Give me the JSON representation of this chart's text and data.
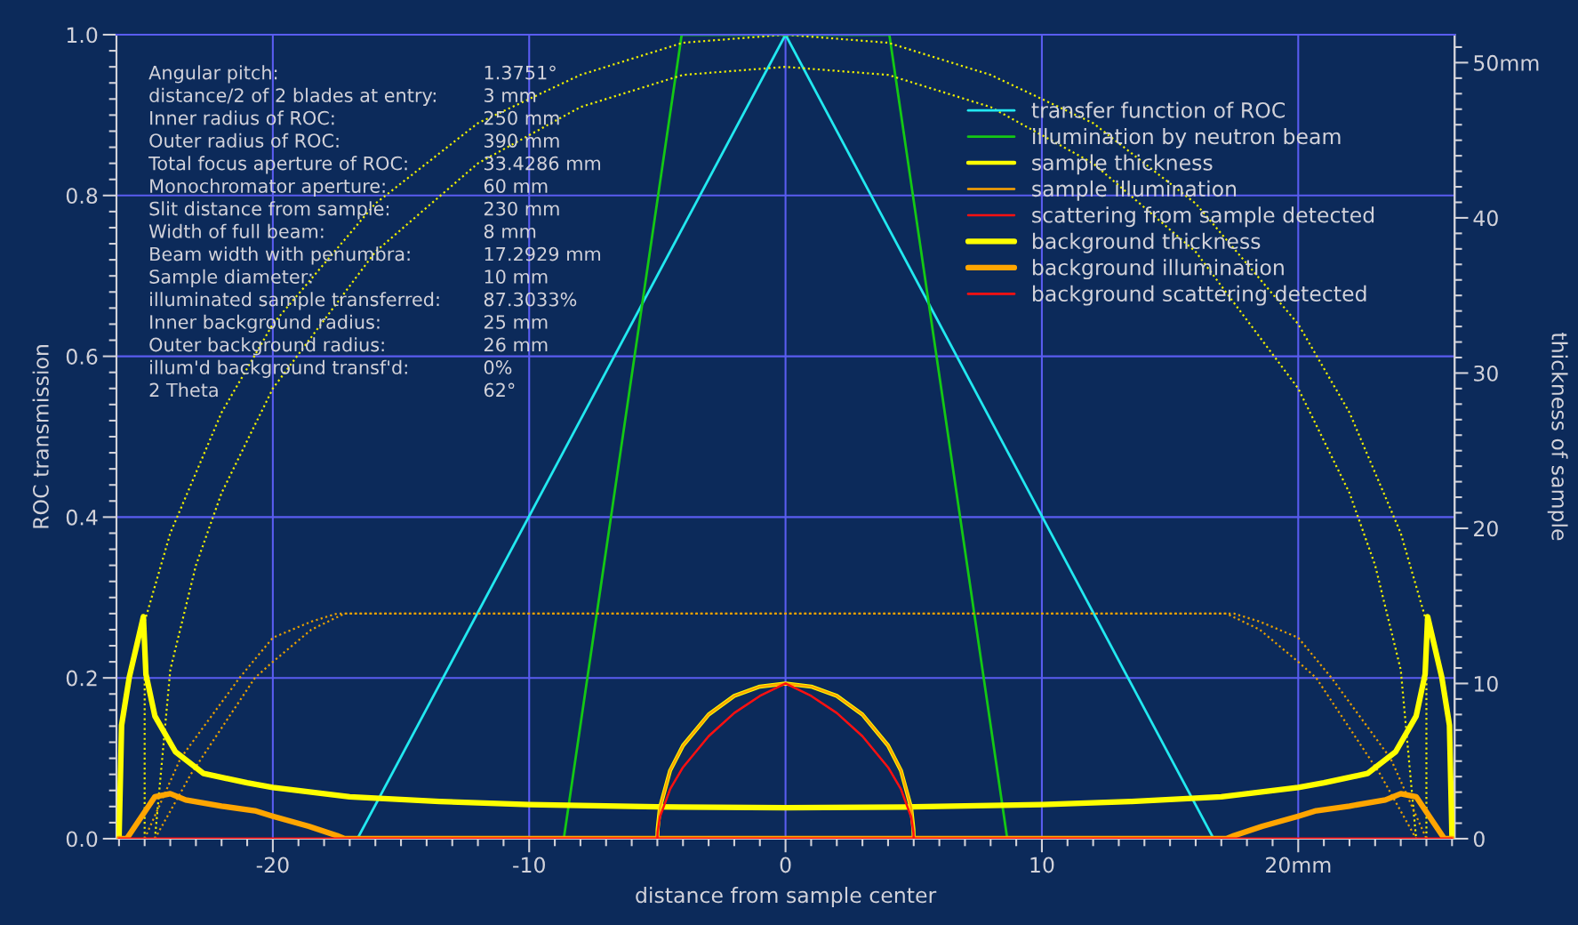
{
  "chart_data": {
    "type": "line",
    "xlabel": "distance from sample center",
    "ylabel": "ROC transmission",
    "y2label": "thickness of sample",
    "xlim": [
      -26.1,
      26.1
    ],
    "ylim": [
      0,
      1
    ],
    "y2lim": [
      0,
      51.8
    ],
    "xticks": [
      {
        "value": -26,
        "label": null
      },
      {
        "value": -25,
        "label": null
      },
      {
        "value": -24,
        "label": null
      },
      {
        "value": -23,
        "label": null
      },
      {
        "value": -22,
        "label": null
      },
      {
        "value": -21,
        "label": null
      },
      -20,
      {
        "value": -19,
        "label": null
      },
      {
        "value": -18,
        "label": null
      },
      {
        "value": -17,
        "label": null
      },
      {
        "value": -16,
        "label": null
      },
      {
        "value": -15,
        "label": null
      },
      {
        "value": -14,
        "label": null
      },
      {
        "value": -13,
        "label": null
      },
      {
        "value": -12,
        "label": null
      },
      {
        "value": -11,
        "label": null
      },
      -10,
      {
        "value": -9,
        "label": null
      },
      {
        "value": -8,
        "label": null
      },
      {
        "value": -7,
        "label": null
      },
      {
        "value": -6,
        "label": null
      },
      {
        "value": -5,
        "label": null
      },
      {
        "value": -4,
        "label": null
      },
      {
        "value": -3,
        "label": null
      },
      {
        "value": -2,
        "label": null
      },
      {
        "value": -1,
        "label": null
      },
      0,
      {
        "value": 1,
        "label": null
      },
      {
        "value": 2,
        "label": null
      },
      {
        "value": 3,
        "label": null
      },
      {
        "value": 4,
        "label": null
      },
      {
        "value": 5,
        "label": null
      },
      {
        "value": 6,
        "label": null
      },
      {
        "value": 7,
        "label": null
      },
      {
        "value": 8,
        "label": null
      },
      {
        "value": 9,
        "label": null
      },
      10,
      {
        "value": 11,
        "label": null
      },
      {
        "value": 12,
        "label": null
      },
      {
        "value": 13,
        "label": null
      },
      {
        "value": 14,
        "label": null
      },
      {
        "value": 15,
        "label": null
      },
      {
        "value": 16,
        "label": null
      },
      {
        "value": 17,
        "label": null
      },
      {
        "value": 18,
        "label": null
      },
      {
        "value": 19,
        "label": null
      },
      {
        "value": 20,
        "label": "20mm"
      },
      {
        "value": 21,
        "label": null
      },
      {
        "value": 22,
        "label": null
      },
      {
        "value": 23,
        "label": null
      },
      {
        "value": 24,
        "label": null
      },
      {
        "value": 25,
        "label": null
      },
      {
        "value": 26,
        "label": null
      }
    ],
    "yticks": [
      {
        "value": 0,
        "label": "0.0"
      },
      {
        "value": 0.02,
        "label": null
      },
      {
        "value": 0.04,
        "label": null
      },
      {
        "value": 0.06,
        "label": null
      },
      {
        "value": 0.08,
        "label": null
      },
      {
        "value": 0.1,
        "label": null
      },
      {
        "value": 0.12,
        "label": null
      },
      {
        "value": 0.14,
        "label": null
      },
      {
        "value": 0.16,
        "label": null
      },
      {
        "value": 0.18,
        "label": null
      },
      0.2,
      {
        "value": 0.22,
        "label": null
      },
      {
        "value": 0.24,
        "label": null
      },
      {
        "value": 0.26,
        "label": null
      },
      {
        "value": 0.28,
        "label": null
      },
      {
        "value": 0.3,
        "label": null
      },
      {
        "value": 0.32,
        "label": null
      },
      {
        "value": 0.34,
        "label": null
      },
      {
        "value": 0.36,
        "label": null
      },
      {
        "value": 0.38,
        "label": null
      },
      0.4,
      {
        "value": 0.42,
        "label": null
      },
      {
        "value": 0.44,
        "label": null
      },
      {
        "value": 0.46,
        "label": null
      },
      {
        "value": 0.48,
        "label": null
      },
      {
        "value": 0.5,
        "label": null
      },
      {
        "value": 0.52,
        "label": null
      },
      {
        "value": 0.54,
        "label": null
      },
      {
        "value": 0.56,
        "label": null
      },
      {
        "value": 0.58,
        "label": null
      },
      0.6,
      {
        "value": 0.62,
        "label": null
      },
      {
        "value": 0.64,
        "label": null
      },
      {
        "value": 0.66,
        "label": null
      },
      {
        "value": 0.68,
        "label": null
      },
      {
        "value": 0.7,
        "label": null
      },
      {
        "value": 0.72,
        "label": null
      },
      {
        "value": 0.74,
        "label": null
      },
      {
        "value": 0.76,
        "label": null
      },
      {
        "value": 0.78,
        "label": null
      },
      0.8,
      {
        "value": 0.82,
        "label": null
      },
      {
        "value": 0.84,
        "label": null
      },
      {
        "value": 0.86,
        "label": null
      },
      {
        "value": 0.88,
        "label": null
      },
      {
        "value": 0.9,
        "label": null
      },
      {
        "value": 0.92,
        "label": null
      },
      {
        "value": 0.94,
        "label": null
      },
      {
        "value": 0.96,
        "label": null
      },
      {
        "value": 0.98,
        "label": null
      },
      {
        "value": 1,
        "label": "1.0"
      }
    ],
    "y2ticks": [
      0,
      {
        "value": 1,
        "label": null
      },
      {
        "value": 2,
        "label": null
      },
      {
        "value": 3,
        "label": null
      },
      {
        "value": 4,
        "label": null
      },
      {
        "value": 5,
        "label": null
      },
      {
        "value": 6,
        "label": null
      },
      {
        "value": 7,
        "label": null
      },
      {
        "value": 8,
        "label": null
      },
      {
        "value": 9,
        "label": null
      },
      10,
      {
        "value": 11,
        "label": null
      },
      {
        "value": 12,
        "label": null
      },
      {
        "value": 13,
        "label": null
      },
      {
        "value": 14,
        "label": null
      },
      {
        "value": 15,
        "label": null
      },
      {
        "value": 16,
        "label": null
      },
      {
        "value": 17,
        "label": null
      },
      {
        "value": 18,
        "label": null
      },
      {
        "value": 19,
        "label": null
      },
      20,
      {
        "value": 21,
        "label": null
      },
      {
        "value": 22,
        "label": null
      },
      {
        "value": 23,
        "label": null
      },
      {
        "value": 24,
        "label": null
      },
      {
        "value": 25,
        "label": null
      },
      {
        "value": 26,
        "label": null
      },
      {
        "value": 27,
        "label": null
      },
      {
        "value": 28,
        "label": null
      },
      {
        "value": 29,
        "label": null
      },
      30,
      {
        "value": 31,
        "label": null
      },
      {
        "value": 32,
        "label": null
      },
      {
        "value": 33,
        "label": null
      },
      {
        "value": 34,
        "label": null
      },
      {
        "value": 35,
        "label": null
      },
      {
        "value": 36,
        "label": null
      },
      {
        "value": 37,
        "label": null
      },
      {
        "value": 38,
        "label": null
      },
      {
        "value": 39,
        "label": null
      },
      40,
      {
        "value": 41,
        "label": null
      },
      {
        "value": 42,
        "label": null
      },
      {
        "value": 43,
        "label": null
      },
      {
        "value": 44,
        "label": null
      },
      {
        "value": 45,
        "label": null
      },
      {
        "value": 46,
        "label": null
      },
      {
        "value": 47,
        "label": null
      },
      {
        "value": 48,
        "label": null
      },
      {
        "value": 49,
        "label": null
      },
      {
        "value": 50,
        "label": "50mm"
      },
      {
        "value": 51,
        "label": null
      }
    ],
    "grid": true,
    "legend": "top right",
    "series": [
      {
        "name": "transfer function of ROC",
        "color": "#22e8f0",
        "line_style": "solid",
        "x": [
          -16.7,
          0,
          16.7
        ],
        "values": [
          0,
          1,
          0
        ]
      },
      {
        "name": "illumination by neutron beam",
        "color": "#14c814",
        "line_style": "solid",
        "x": [
          -8.65,
          -4.05,
          4.05,
          8.65
        ],
        "values": [
          0,
          1,
          1,
          0
        ]
      },
      {
        "name": "sample thickness",
        "color": "#ffff00",
        "line_style": "solid",
        "axis": "y2",
        "x": [
          -5,
          -4.99,
          -4.9,
          -4.5,
          -4,
          -3,
          -2,
          -1,
          0,
          1,
          2,
          3,
          4,
          4.5,
          4.9,
          4.99,
          5
        ],
        "values": [
          0,
          0.6,
          2.0,
          4.4,
          6.0,
          8.0,
          9.2,
          9.8,
          10,
          9.8,
          9.2,
          8.0,
          6.0,
          4.4,
          2.0,
          0.6,
          0
        ]
      },
      {
        "name": "sample illumination",
        "color": "#ffa500",
        "line_style": "solid",
        "axis": "y2",
        "x": [
          -5,
          -4.99,
          -4.9,
          -4.5,
          -4,
          -3,
          -2,
          -1,
          0,
          1,
          2,
          3,
          4,
          4.5,
          4.9,
          4.99,
          5
        ],
        "values": [
          0,
          0.6,
          2.0,
          4.4,
          6.0,
          8.0,
          9.2,
          9.8,
          10,
          9.8,
          9.2,
          8.0,
          6.0,
          4.4,
          2.0,
          0.6,
          0
        ]
      },
      {
        "name": "scattering from sample detected",
        "color": "#ff1010",
        "line_style": "solid",
        "axis": "y2",
        "x": [
          -5,
          -4.99,
          -4.9,
          -4.5,
          -4,
          -3,
          -2,
          -1,
          0,
          1,
          2,
          3,
          4,
          4.5,
          4.9,
          4.99,
          5
        ],
        "values": [
          0,
          0.4,
          1.4,
          3.2,
          4.6,
          6.6,
          8.1,
          9.2,
          10,
          9.2,
          8.1,
          6.6,
          4.6,
          3.2,
          1.4,
          0.4,
          0
        ]
      },
      {
        "name": "background thickness",
        "color": "#ffff00",
        "line_style": "solid",
        "axis": "y2",
        "x": [
          -26,
          -25.9,
          -25.6,
          -25.05,
          -24.95,
          -24.6,
          -23.8,
          -22.7,
          -21,
          -20,
          -17,
          -13.5,
          -10,
          -5,
          0,
          5,
          10,
          13.5,
          17,
          20,
          21,
          22.7,
          23.8,
          24.6,
          24.95,
          25.05,
          25.6,
          25.9,
          26
        ],
        "values": [
          0,
          7.3,
          10.4,
          14.3,
          10.6,
          7.9,
          5.6,
          4.2,
          3.6,
          3.3,
          2.7,
          2.4,
          2.2,
          2.05,
          2.0,
          2.05,
          2.2,
          2.4,
          2.7,
          3.3,
          3.6,
          4.2,
          5.6,
          7.9,
          10.6,
          14.3,
          10.4,
          7.3,
          0
        ]
      },
      {
        "name": "background illumination",
        "color": "#ffa500",
        "line_style": "solid",
        "axis": "y2",
        "x": [
          -26,
          -25.7,
          -24.6,
          -24.0,
          -23.4,
          -22.0,
          -20.7,
          -20,
          -18.6,
          -17.5,
          -17.2,
          17.2,
          17.5,
          18.6,
          20,
          20.7,
          22,
          23.4,
          24,
          24.6,
          25.7,
          26
        ],
        "values": [
          0,
          0,
          2.7,
          2.9,
          2.5,
          2.1,
          1.8,
          1.45,
          0.8,
          0.2,
          0,
          0,
          0.2,
          0.8,
          1.45,
          1.8,
          2.1,
          2.5,
          2.9,
          2.7,
          0,
          0
        ]
      },
      {
        "name": "background scattering detected",
        "color": "#ff1010",
        "line_style": "solid",
        "axis": "y2",
        "x": [
          -26,
          26
        ],
        "values": [
          0,
          0
        ]
      },
      {
        "color": "#f0f000",
        "line_style": "dotted",
        "x": [
          -25,
          -25,
          -24,
          -22,
          -20,
          -16,
          -12,
          -8,
          -4,
          0,
          4,
          8,
          12,
          16,
          20,
          22,
          24,
          25,
          25
        ],
        "values": [
          0,
          0.27,
          0.38,
          0.53,
          0.64,
          0.79,
          0.89,
          0.95,
          0.99,
          1.0,
          0.99,
          0.95,
          0.89,
          0.79,
          0.64,
          0.53,
          0.38,
          0.27,
          0
        ]
      },
      {
        "color": "#f0f000",
        "line_style": "dotted",
        "x": [
          -24.6,
          -24,
          -23,
          -22,
          -20,
          -16,
          -12,
          -8,
          -4,
          0,
          4,
          8,
          12,
          16,
          20,
          22,
          23,
          24,
          24.6
        ],
        "values": [
          0,
          0.21,
          0.34,
          0.43,
          0.56,
          0.73,
          0.84,
          0.91,
          0.95,
          0.96,
          0.95,
          0.91,
          0.84,
          0.73,
          0.56,
          0.43,
          0.34,
          0.21,
          0
        ]
      },
      {
        "color": "#e8a000",
        "line_style": "dotted",
        "x": [
          -25,
          -23.6,
          -21.3,
          -20,
          -18.5,
          -17.5,
          17.5,
          18.5,
          20,
          21.3,
          23.6,
          25
        ],
        "values": [
          0,
          0.1,
          0.2,
          0.25,
          0.27,
          0.28,
          0.28,
          0.27,
          0.25,
          0.2,
          0.1,
          0
        ]
      },
      {
        "color": "#e8a000",
        "line_style": "dotted",
        "x": [
          -24.6,
          -23.2,
          -20.7,
          -20,
          -18.5,
          -17.2,
          17.2,
          18.5,
          20,
          20.7,
          23.2,
          24.6
        ],
        "values": [
          0,
          0.08,
          0.2,
          0.22,
          0.26,
          0.28,
          0.28,
          0.26,
          0.22,
          0.2,
          0.08,
          0
        ]
      }
    ],
    "annotations": [
      "Angular pitch:\t1.3751°",
      "distance/2 of 2 blades at entry:\t3 mm",
      "Inner radius of ROC:\t250 mm",
      "Outer radius of ROC:\t390 mm",
      "Total focus aperture of ROC:\t33.4286 mm",
      "Monochromator aperture:\t60 mm",
      "Slit distance from sample:\t230 mm",
      "Width of full beam:\t8 mm",
      "Beam width with penumbra:\t17.2929 mm",
      "Sample diameter:\t10 mm",
      "illuminated sample transferred:\t87.3033%",
      "Inner background radius:\t25 mm",
      "Outer background radius:\t26 mm",
      "illum'd background transf'd:\t0%",
      "2 Theta\t62°"
    ]
  }
}
